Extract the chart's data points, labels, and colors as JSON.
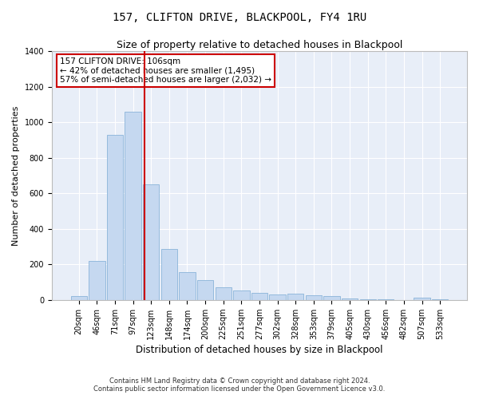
{
  "title": "157, CLIFTON DRIVE, BLACKPOOL, FY4 1RU",
  "subtitle": "Size of property relative to detached houses in Blackpool",
  "xlabel": "Distribution of detached houses by size in Blackpool",
  "ylabel": "Number of detached properties",
  "footer1": "Contains HM Land Registry data © Crown copyright and database right 2024.",
  "footer2": "Contains public sector information licensed under the Open Government Licence v3.0.",
  "annotation_title": "157 CLIFTON DRIVE: 106sqm",
  "annotation_line2": "← 42% of detached houses are smaller (1,495)",
  "annotation_line3": "57% of semi-detached houses are larger (2,032) →",
  "bar_color": "#c5d8f0",
  "bar_edge_color": "#8ab4d9",
  "vline_color": "#cc0000",
  "background_color": "#e8eef8",
  "categories": [
    "20sqm",
    "46sqm",
    "71sqm",
    "97sqm",
    "123sqm",
    "148sqm",
    "174sqm",
    "200sqm",
    "225sqm",
    "251sqm",
    "277sqm",
    "302sqm",
    "328sqm",
    "353sqm",
    "379sqm",
    "405sqm",
    "430sqm",
    "456sqm",
    "482sqm",
    "507sqm",
    "533sqm"
  ],
  "values": [
    20,
    220,
    930,
    1060,
    650,
    285,
    155,
    110,
    70,
    55,
    40,
    30,
    35,
    28,
    22,
    8,
    5,
    5,
    0,
    12,
    5
  ],
  "ylim": [
    0,
    1400
  ],
  "yticks": [
    0,
    200,
    400,
    600,
    800,
    1000,
    1200,
    1400
  ],
  "annotation_box_color": "#ffffff",
  "annotation_box_edge": "#cc0000",
  "vline_x": 3.62,
  "title_fontsize": 10,
  "subtitle_fontsize": 9,
  "ylabel_fontsize": 8,
  "xlabel_fontsize": 8.5,
  "tick_fontsize": 7,
  "footer_fontsize": 6,
  "annot_fontsize": 7.5
}
